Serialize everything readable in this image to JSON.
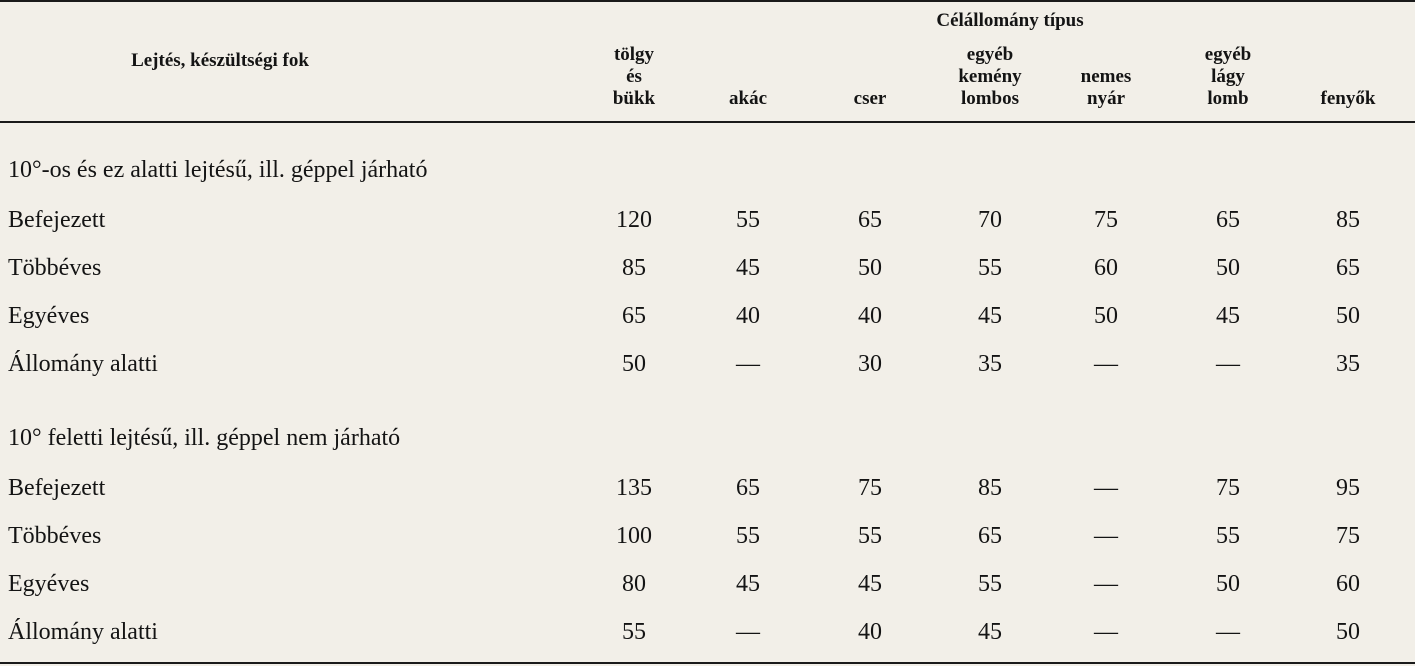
{
  "header": {
    "left_label": "Lejtés, készültségi fok",
    "group_label": "Célállomány típus",
    "columns": [
      {
        "lines": [
          "tölgy",
          "és",
          "bükk"
        ]
      },
      {
        "lines": [
          "akác"
        ]
      },
      {
        "lines": [
          "cser"
        ]
      },
      {
        "lines": [
          "egyéb",
          "kemény",
          "lombos"
        ]
      },
      {
        "lines": [
          "nemes",
          "nyár"
        ]
      },
      {
        "lines": [
          "egyéb",
          "lágy",
          "lomb"
        ]
      },
      {
        "lines": [
          "fenyők"
        ]
      }
    ]
  },
  "sections": [
    {
      "title": "10°-os és ez alatti lejtésű, ill. géppel járható",
      "rows": [
        {
          "label": "Befejezett",
          "values": [
            "120",
            "55",
            "65",
            "70",
            "75",
            "65",
            "85"
          ]
        },
        {
          "label": "Többéves",
          "values": [
            "85",
            "45",
            "50",
            "55",
            "60",
            "50",
            "65"
          ]
        },
        {
          "label": "Egyéves",
          "values": [
            "65",
            "40",
            "40",
            "45",
            "50",
            "45",
            "50"
          ]
        },
        {
          "label": "Állomány alatti",
          "values": [
            "50",
            "—",
            "30",
            "35",
            "—",
            "—",
            "35"
          ]
        }
      ]
    },
    {
      "title": "10° feletti lejtésű, ill. géppel nem járható",
      "rows": [
        {
          "label": "Befejezett",
          "values": [
            "135",
            "65",
            "75",
            "85",
            "—",
            "75",
            "95"
          ]
        },
        {
          "label": "Többéves",
          "values": [
            "100",
            "55",
            "55",
            "65",
            "—",
            "55",
            "75"
          ]
        },
        {
          "label": "Egyéves",
          "values": [
            "80",
            "45",
            "45",
            "55",
            "—",
            "50",
            "60"
          ]
        },
        {
          "label": "Állomány alatti",
          "values": [
            "55",
            "—",
            "40",
            "45",
            "—",
            "—",
            "50"
          ]
        }
      ]
    }
  ]
}
